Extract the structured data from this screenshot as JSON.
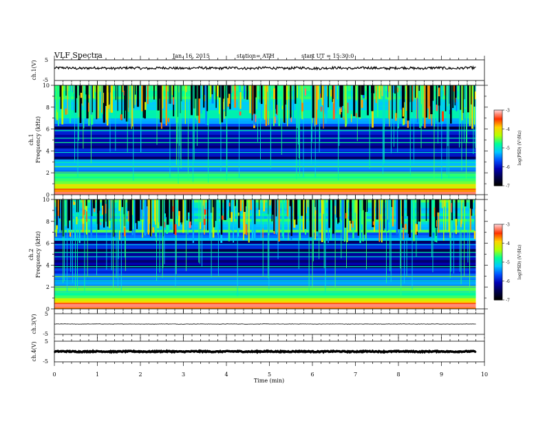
{
  "header": {
    "title": "VLF  Spectra",
    "date": "Jan. 16, 2015",
    "station": "station= ATH",
    "start": "start  UT  =   15:30:0"
  },
  "chart_data": {
    "type": "heatmap",
    "x": {
      "label": "Time  (min)",
      "range": [
        0,
        10
      ],
      "ticks": [
        "0",
        "1",
        "2",
        "3",
        "4",
        "5",
        "6",
        "7",
        "8",
        "9",
        "10"
      ],
      "data_end_min": 9.8
    },
    "panels": [
      {
        "id": "ch1-waveform",
        "type": "line",
        "ylabel": "ch.1(V)",
        "ylim": [
          -5,
          5
        ],
        "ytick_labels": [
          "5",
          "-5"
        ],
        "baseline_v": 1.0,
        "noise_amplitude_v": 0.6
      },
      {
        "id": "ch1-spectrogram",
        "type": "heatmap",
        "ylabel": "ch.1",
        "ylabel2": "Frequency  (kHz)",
        "ylim_khz": [
          0,
          10
        ],
        "ytick_labels": [
          "0",
          "2",
          "4",
          "6",
          "8",
          "10"
        ],
        "colorbar": {
          "label": "log(PSD) (V²/Hz)",
          "range": [
            -7,
            -3
          ],
          "tick_labels": [
            "-3",
            "-4",
            "-5",
            "-6",
            "-7"
          ]
        }
      },
      {
        "id": "ch2-spectrogram",
        "type": "heatmap",
        "ylabel": "ch.2",
        "ylabel2": "Frequency  (kHz)",
        "ylim_khz": [
          0,
          10
        ],
        "ytick_labels": [
          "0",
          "2",
          "4",
          "6",
          "8",
          "10"
        ],
        "colorbar": {
          "label": "log(PSD) (V²/Hz)",
          "range": [
            -7,
            -3
          ],
          "tick_labels": [
            "-3",
            "-4",
            "-5",
            "-6",
            "-7"
          ]
        }
      },
      {
        "id": "ch3-waveform",
        "type": "line",
        "ylabel": "ch.3(V)",
        "ylim": [
          -5,
          5
        ],
        "ytick_labels": [
          "5",
          "-5"
        ],
        "baseline_v": 0.0,
        "noise_amplitude_v": 0.1
      },
      {
        "id": "ch4-waveform",
        "type": "line",
        "ylabel": "ch.4(V)",
        "ylim": [
          -5,
          5
        ],
        "ytick_labels": [
          "5",
          "-5"
        ],
        "baseline_v": 0.0,
        "noise_amplitude_v": 0.25
      }
    ],
    "colormap": [
      "#000000",
      "#000050",
      "#0000b4",
      "#0050ff",
      "#00c8ff",
      "#00ff96",
      "#b4ff00",
      "#ffd200",
      "#ff3200",
      "#ffc8c8"
    ]
  }
}
